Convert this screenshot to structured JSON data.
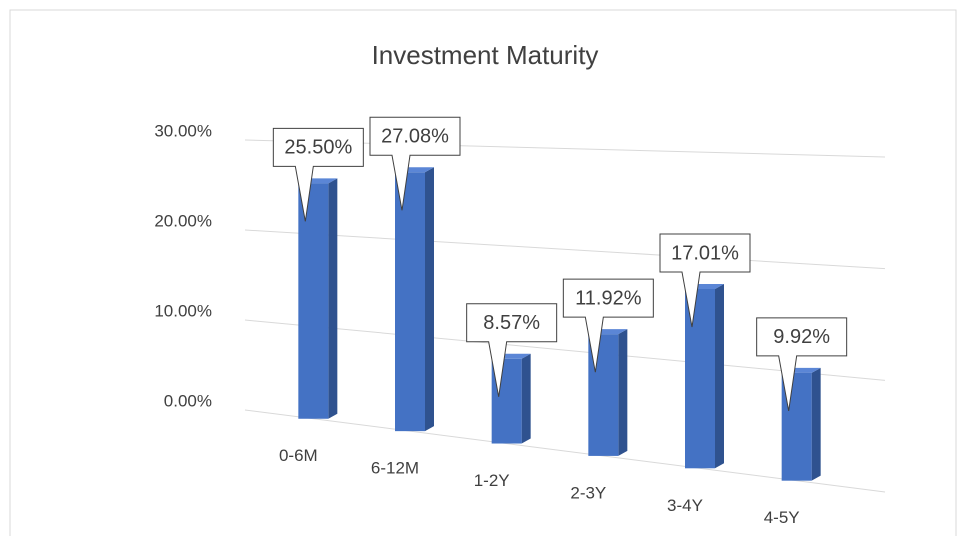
{
  "chart_data": {
    "type": "bar3d",
    "title": "Investment Maturity",
    "categories": [
      "0-6M",
      "6-12M",
      "1-2Y",
      "2-3Y",
      "3-4Y",
      "4-5Y"
    ],
    "values": [
      25.5,
      27.08,
      8.57,
      11.92,
      17.01,
      9.92
    ],
    "value_labels": [
      "25.50%",
      "27.08%",
      "8.57%",
      "11.92%",
      "17.01%",
      "9.92%"
    ],
    "color": "#4472c4",
    "ylim": [
      0,
      30
    ],
    "yticks": [
      {
        "value": 0,
        "label": "0.00%"
      },
      {
        "value": 10,
        "label": "10.00%"
      },
      {
        "value": 20,
        "label": "20.00%"
      },
      {
        "value": 30,
        "label": "30.00%"
      }
    ],
    "grid": true
  }
}
